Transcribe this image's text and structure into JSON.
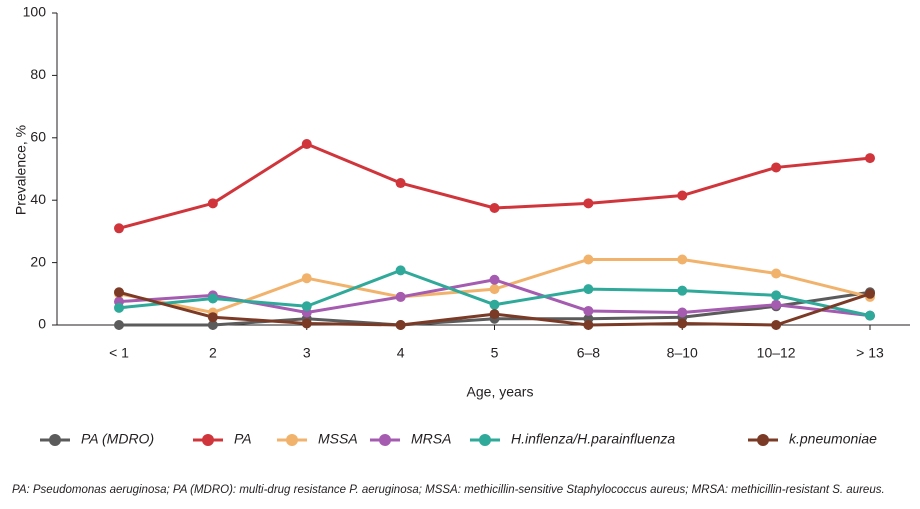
{
  "chart_data": {
    "type": "line",
    "y_label": "Prevalence, %",
    "x_label": "Age, years",
    "categories": [
      "< 1",
      "2",
      "3",
      "4",
      "5",
      "6–8",
      "8–10",
      "10–12",
      "> 13"
    ],
    "ylim": [
      0,
      100
    ],
    "yticks": [
      0,
      20,
      40,
      60,
      80,
      100
    ],
    "series": [
      {
        "name": "PA (MDRO)",
        "color": "#5b5b5b",
        "values": [
          0,
          0,
          2,
          0,
          2,
          2,
          2.5,
          6,
          10.5
        ]
      },
      {
        "name": "PA",
        "color": "#d0353b",
        "values": [
          31,
          39,
          58,
          45.5,
          37.5,
          39,
          41.5,
          50.5,
          53.5
        ]
      },
      {
        "name": "MSSA",
        "color": "#f1b26c",
        "values": [
          10,
          4,
          15,
          9,
          11.5,
          21,
          21,
          16.5,
          9
        ]
      },
      {
        "name": "MRSA",
        "color": "#a45bb0",
        "values": [
          7.5,
          9.5,
          4,
          9,
          14.5,
          4.5,
          4,
          6.5,
          3
        ]
      },
      {
        "name": "H.inflenza/H.parainfluenza",
        "color": "#2fa99a",
        "values": [
          5.5,
          8.5,
          6,
          17.5,
          6.5,
          11.5,
          11,
          9.5,
          3
        ]
      },
      {
        "name": "k.pneumoniae",
        "color": "#7b3a26",
        "values": [
          10.5,
          2.5,
          0.5,
          0,
          3.5,
          0,
          0.5,
          0,
          10
        ]
      }
    ],
    "footnote": "PA: Pseudomonas aeruginosa; PA (MDRO): multi-drug resistance P. aeruginosa; MSSA: methicillin-sensitive Staphylococcus aureus; MRSA: methicillin-resistant S. aureus."
  }
}
